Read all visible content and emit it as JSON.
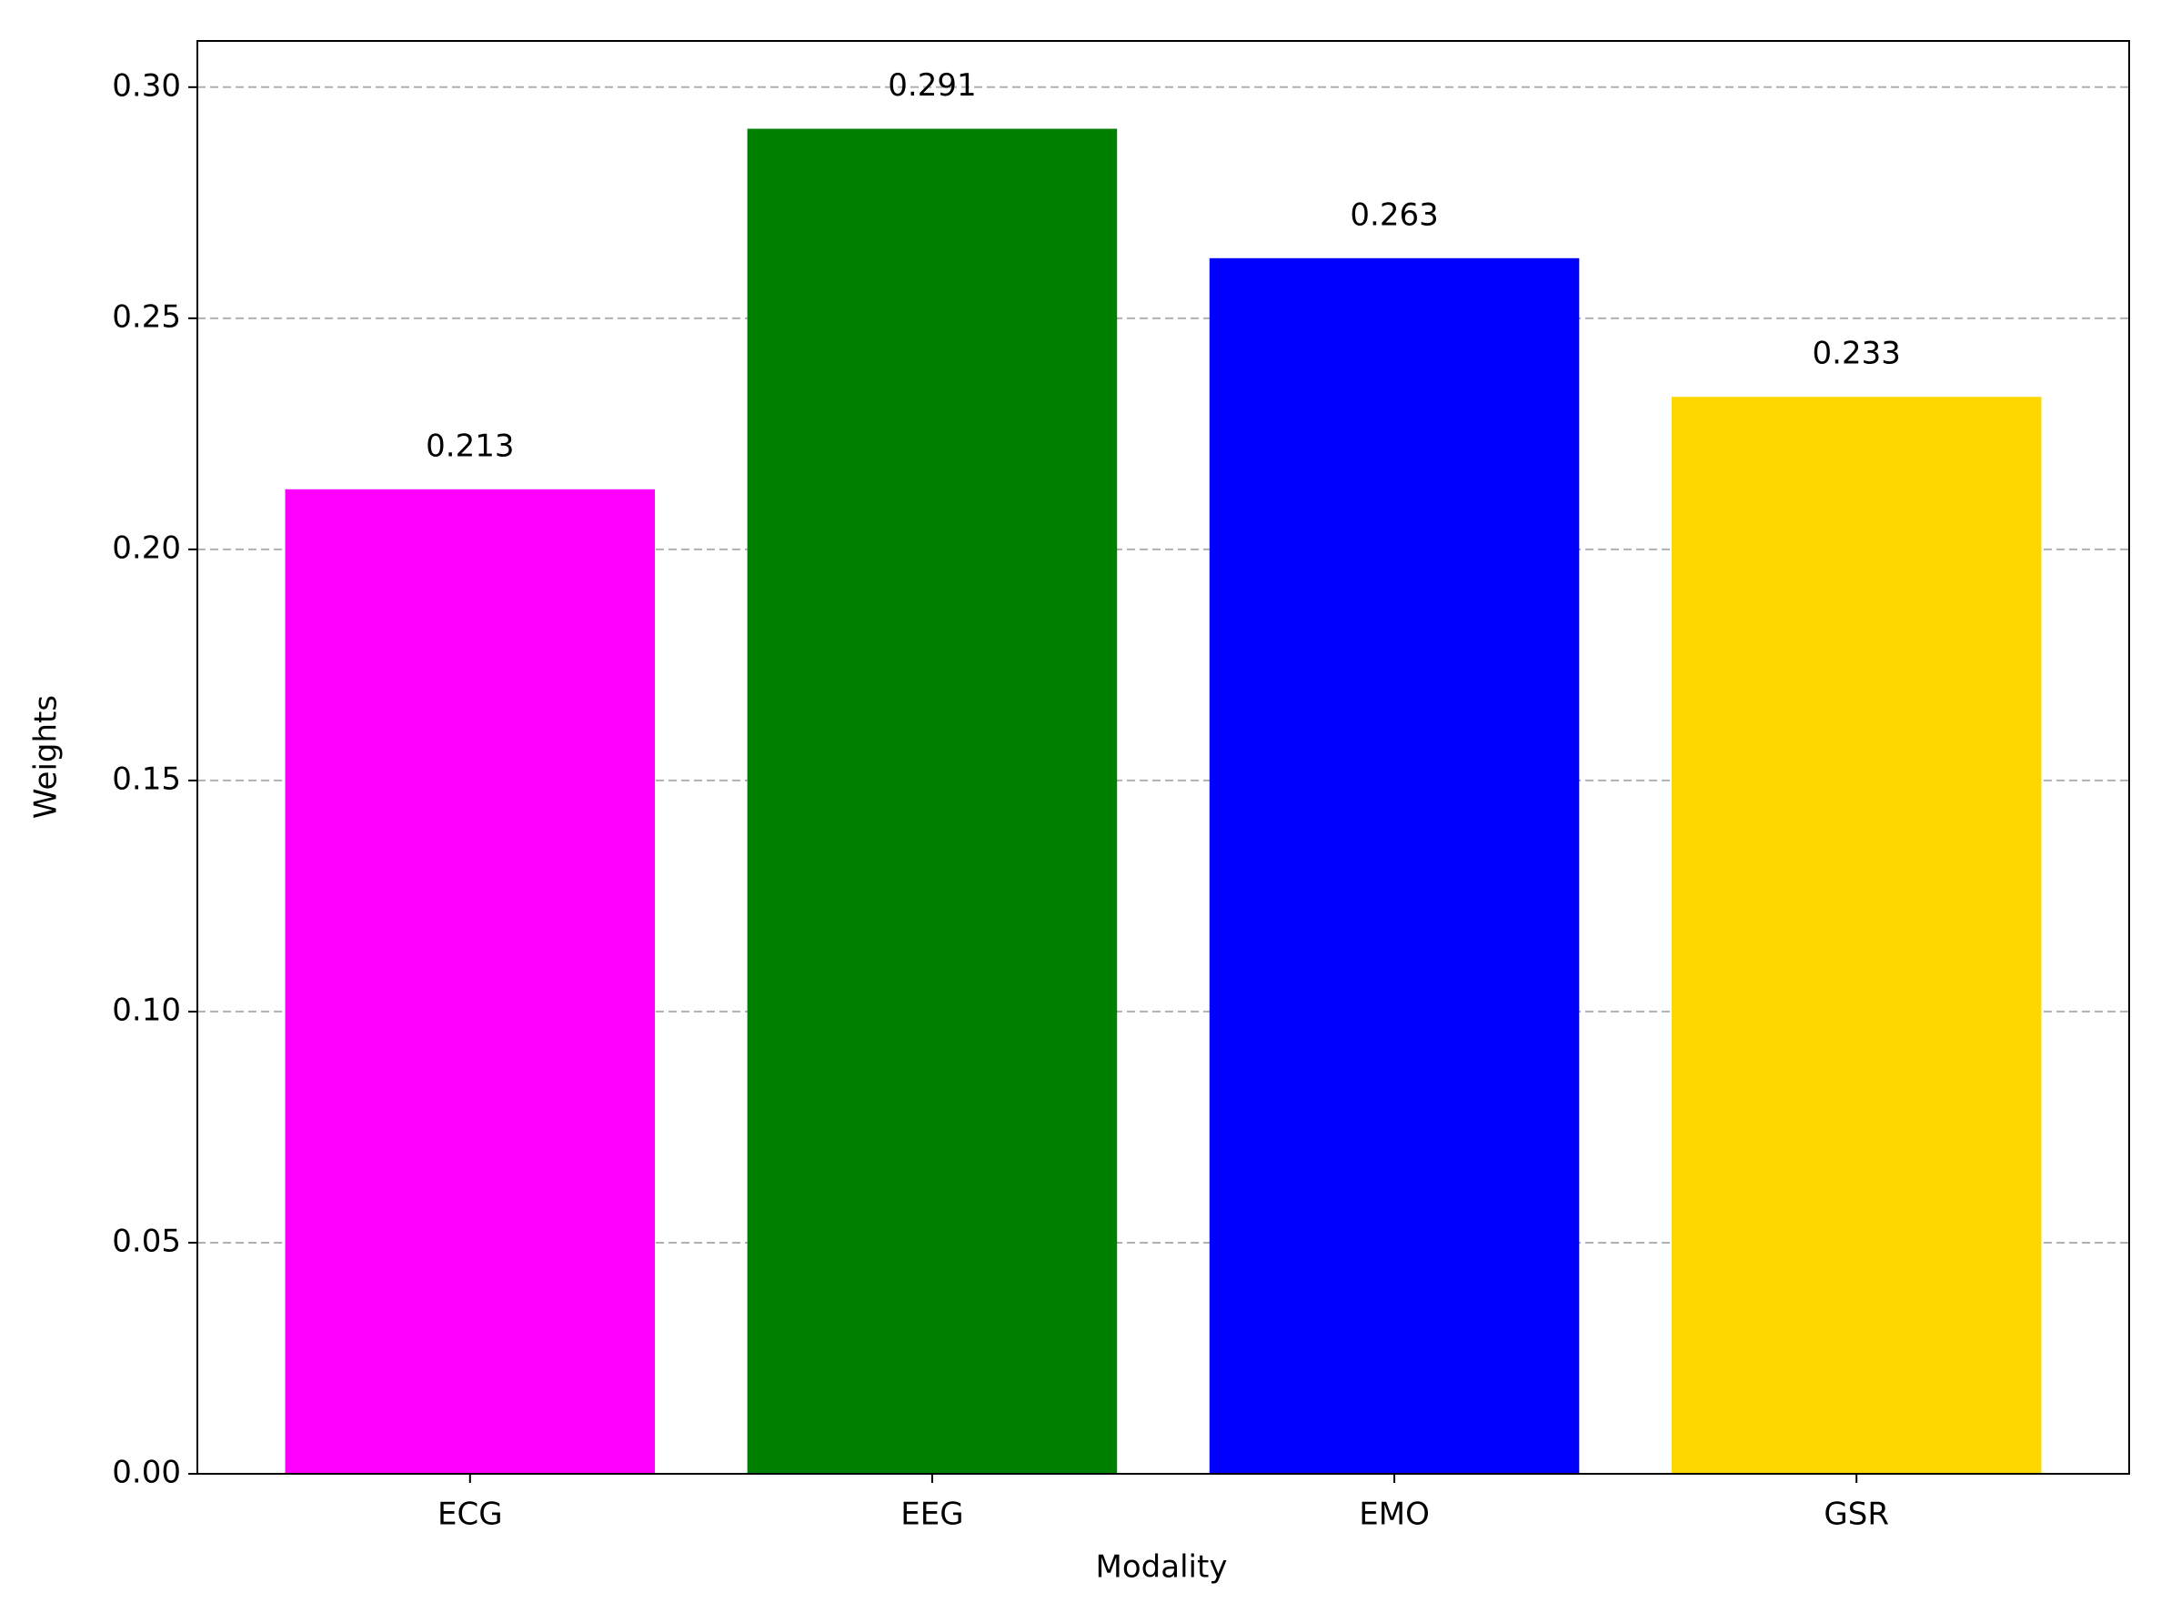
{
  "chart_data": {
    "type": "bar",
    "x_label": "Modality",
    "y_label": "Weights",
    "categories": [
      "ECG",
      "EEG",
      "EMO",
      "GSR"
    ],
    "values": [
      0.213,
      0.291,
      0.263,
      0.233
    ],
    "colors": [
      "#ff00ff",
      "#008000",
      "#0000ff",
      "#ffd700"
    ],
    "ylim": [
      0,
      0.31
    ],
    "yticks": [
      {
        "value": 0,
        "label": "0.00"
      },
      0.05,
      {
        "value": 0.1,
        "label": "0.10"
      },
      0.15,
      {
        "value": 0.2,
        "label": "0.20"
      },
      0.25,
      {
        "value": 0.3,
        "label": "0.30"
      }
    ],
    "grid": true
  }
}
